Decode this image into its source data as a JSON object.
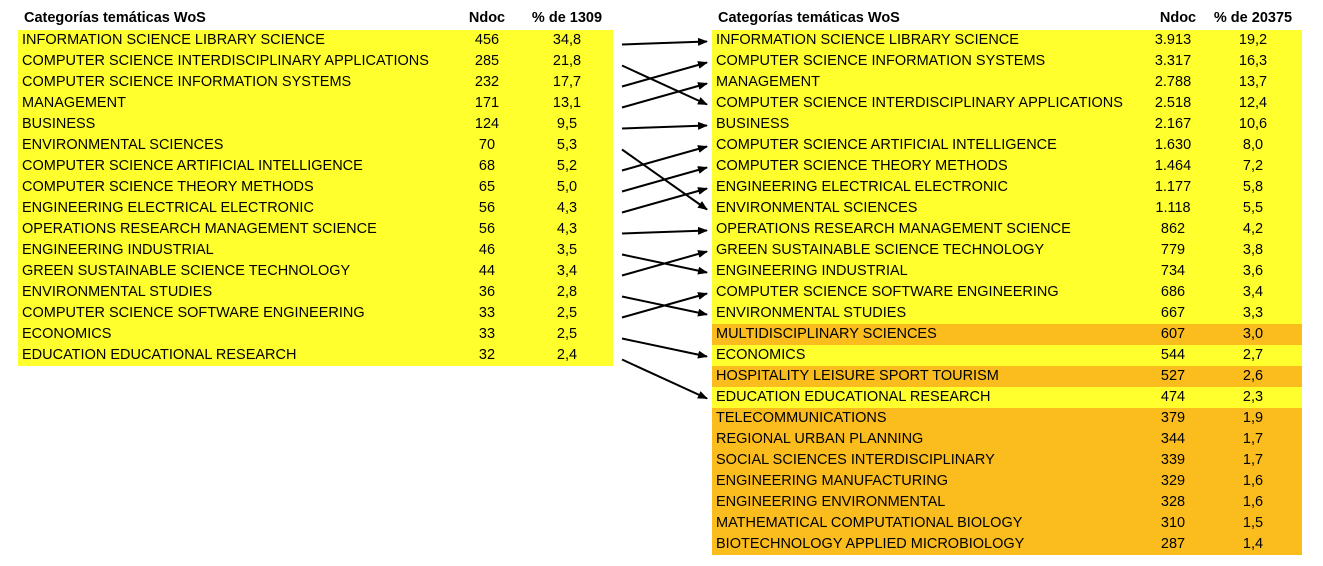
{
  "left": {
    "header": [
      "Categorías temáticas WoS",
      "Ndoc",
      "% de 1309"
    ],
    "rows": [
      [
        "INFORMATION SCIENCE LIBRARY SCIENCE",
        "456",
        "34,8"
      ],
      [
        "COMPUTER SCIENCE INTERDISCIPLINARY APPLICATIONS",
        "285",
        "21,8"
      ],
      [
        "COMPUTER SCIENCE INFORMATION SYSTEMS",
        "232",
        "17,7"
      ],
      [
        "MANAGEMENT",
        "171",
        "13,1"
      ],
      [
        "BUSINESS",
        "124",
        "9,5"
      ],
      [
        "ENVIRONMENTAL SCIENCES",
        "70",
        "5,3"
      ],
      [
        "COMPUTER SCIENCE ARTIFICIAL INTELLIGENCE",
        "68",
        "5,2"
      ],
      [
        "COMPUTER SCIENCE THEORY METHODS",
        "65",
        "5,0"
      ],
      [
        "ENGINEERING ELECTRICAL ELECTRONIC",
        "56",
        "4,3"
      ],
      [
        "OPERATIONS RESEARCH MANAGEMENT SCIENCE",
        "56",
        "4,3"
      ],
      [
        "ENGINEERING INDUSTRIAL",
        "46",
        "3,5"
      ],
      [
        "GREEN SUSTAINABLE SCIENCE TECHNOLOGY",
        "44",
        "3,4"
      ],
      [
        "ENVIRONMENTAL STUDIES",
        "36",
        "2,8"
      ],
      [
        "COMPUTER SCIENCE SOFTWARE ENGINEERING",
        "33",
        "2,5"
      ],
      [
        "ECONOMICS",
        "33",
        "2,5"
      ],
      [
        "EDUCATION EDUCATIONAL RESEARCH",
        "32",
        "2,4"
      ]
    ]
  },
  "right": {
    "header": [
      "Categorías temáticas WoS",
      "Ndoc",
      "% de 20375"
    ],
    "rows": [
      [
        "INFORMATION SCIENCE LIBRARY SCIENCE",
        "3.913",
        "19,2"
      ],
      [
        "COMPUTER SCIENCE INFORMATION SYSTEMS",
        "3.317",
        "16,3"
      ],
      [
        "MANAGEMENT",
        "2.788",
        "13,7"
      ],
      [
        "COMPUTER SCIENCE INTERDISCIPLINARY APPLICATIONS",
        "2.518",
        "12,4"
      ],
      [
        "BUSINESS",
        "2.167",
        "10,6"
      ],
      [
        "COMPUTER SCIENCE ARTIFICIAL INTELLIGENCE",
        "1.630",
        "8,0"
      ],
      [
        "COMPUTER SCIENCE THEORY METHODS",
        "1.464",
        "7,2"
      ],
      [
        "ENGINEERING ELECTRICAL ELECTRONIC",
        "1.177",
        "5,8"
      ],
      [
        "ENVIRONMENTAL SCIENCES",
        "1.118",
        "5,5"
      ],
      [
        "OPERATIONS RESEARCH MANAGEMENT SCIENCE",
        "862",
        "4,2"
      ],
      [
        "GREEN SUSTAINABLE SCIENCE TECHNOLOGY",
        "779",
        "3,8"
      ],
      [
        "ENGINEERING INDUSTRIAL",
        "734",
        "3,6"
      ],
      [
        "COMPUTER SCIENCE SOFTWARE ENGINEERING",
        "686",
        "3,4"
      ],
      [
        "ENVIRONMENTAL STUDIES",
        "667",
        "3,3"
      ],
      [
        "MULTIDISCIPLINARY SCIENCES",
        "607",
        "3,0"
      ],
      [
        "ECONOMICS",
        "544",
        "2,7"
      ],
      [
        "HOSPITALITY LEISURE SPORT TOURISM",
        "527",
        "2,6"
      ],
      [
        "EDUCATION EDUCATIONAL RESEARCH",
        "474",
        "2,3"
      ],
      [
        "TELECOMMUNICATIONS",
        "379",
        "1,9"
      ],
      [
        "REGIONAL URBAN PLANNING",
        "344",
        "1,7"
      ],
      [
        "SOCIAL SCIENCES INTERDISCIPLINARY",
        "339",
        "1,7"
      ],
      [
        "ENGINEERING MANUFACTURING",
        "329",
        "1,6"
      ],
      [
        "ENGINEERING ENVIRONMENTAL",
        "328",
        "1,6"
      ],
      [
        "MATHEMATICAL COMPUTATIONAL BIOLOGY",
        "310",
        "1,5"
      ],
      [
        "BIOTECHNOLOGY APPLIED MICROBIOLOGY",
        "287",
        "1,4"
      ]
    ]
  }
}
